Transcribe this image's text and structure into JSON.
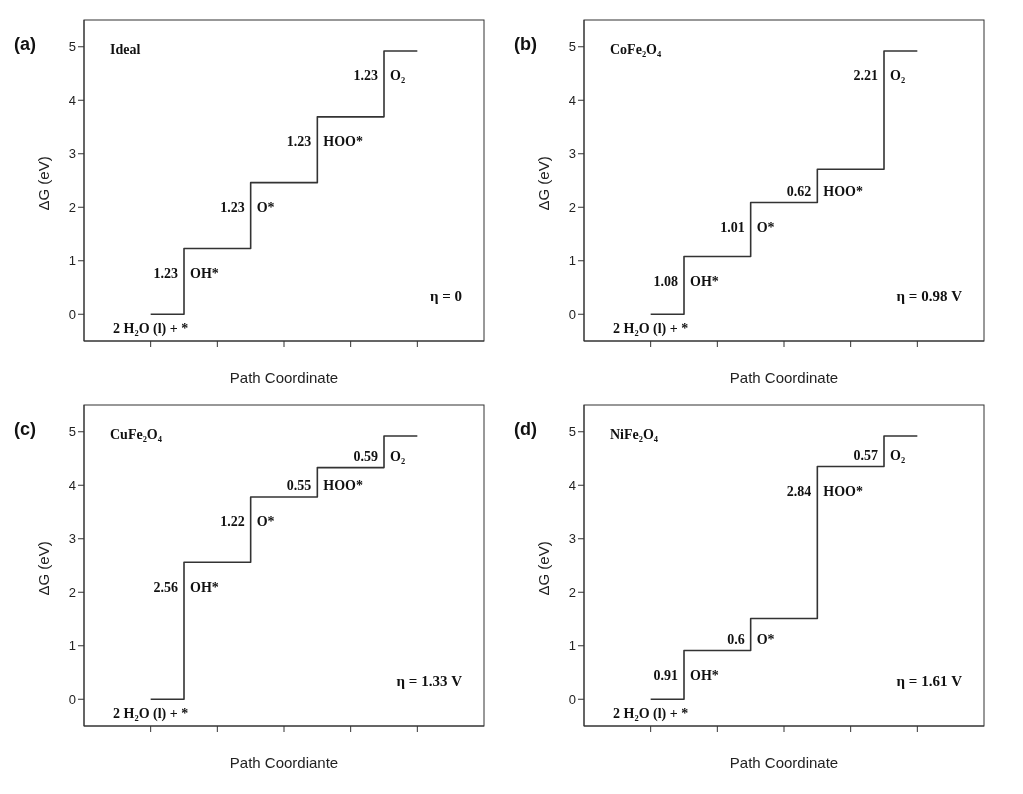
{
  "chart_data": [
    {
      "type": "step",
      "title": "(a)",
      "subtitle": "Ideal",
      "xlabel": "Path Coordinate",
      "ylabel": "ΔG (eV)",
      "categories": [
        null,
        null,
        null,
        null,
        null
      ],
      "ylim": [
        -0.5,
        5.5
      ],
      "yticks": [
        0,
        1,
        2,
        3,
        4,
        5
      ],
      "tick_labels": "y",
      "series": [
        {
          "color": "#333333",
          "values": [
            0,
            1.23,
            2.46,
            3.69,
            4.92
          ]
        }
      ],
      "annotations": [
        "2 H₂O (l) + *",
        "1.23",
        "OH*",
        "1.23",
        "O*",
        "1.23",
        "HOO*",
        "1.23",
        "O₂",
        "η = 0"
      ]
    },
    {
      "type": "step",
      "title": "(b)",
      "subtitle": "CoFe₂O₄",
      "xlabel": "Path Coordinate",
      "ylabel": "ΔG (eV)",
      "categories": [
        null,
        null,
        null,
        null,
        null
      ],
      "ylim": [
        -0.5,
        5.5
      ],
      "yticks": [
        0,
        1,
        2,
        3,
        4,
        5
      ],
      "tick_labels": "y",
      "series": [
        {
          "color": "#333333",
          "values": [
            0,
            1.08,
            2.09,
            2.71,
            4.92
          ]
        }
      ],
      "annotations": [
        "2 H₂O (l) + *",
        "1.08",
        "OH*",
        "1.01",
        "O*",
        "0.62",
        "HOO*",
        "2.21",
        "O₂",
        "η = 0.98 V"
      ]
    },
    {
      "type": "step",
      "title": "(c)",
      "subtitle": "CuFe₂O₄",
      "xlabel": "Path Coordiante",
      "ylabel": "ΔG (eV)",
      "categories": [
        null,
        null,
        null,
        null,
        null
      ],
      "ylim": [
        -0.5,
        5.5
      ],
      "yticks": [
        0,
        1,
        2,
        3,
        4,
        5
      ],
      "tick_labels": "y",
      "series": [
        {
          "color": "#333333",
          "values": [
            0,
            2.56,
            3.78,
            4.33,
            4.92
          ]
        }
      ],
      "annotations": [
        "2 H₂O (l) + *",
        "2.56",
        "OH*",
        "1.22",
        "O*",
        "0.55",
        "HOO*",
        "0.59",
        "O₂",
        "η = 1.33 V"
      ]
    },
    {
      "type": "step",
      "title": "(d)",
      "subtitle": "NiFe₂O₄",
      "xlabel": "Path Coordinate",
      "ylabel": "ΔG (eV)",
      "categories": [
        null,
        null,
        null,
        null,
        null
      ],
      "ylim": [
        -0.5,
        5.5
      ],
      "yticks": [
        0,
        1,
        2,
        3,
        4,
        5
      ],
      "tick_labels": "y",
      "series": [
        {
          "color": "#333333",
          "values": [
            0,
            0.91,
            1.51,
            4.35,
            4.92
          ]
        }
      ],
      "annotations": [
        "2 H₂O (l) + *",
        "0.91",
        "OH*",
        "0.6",
        "O*",
        "2.84",
        "HOO*",
        "0.57",
        "O₂",
        "η = 1.61 V"
      ]
    }
  ]
}
